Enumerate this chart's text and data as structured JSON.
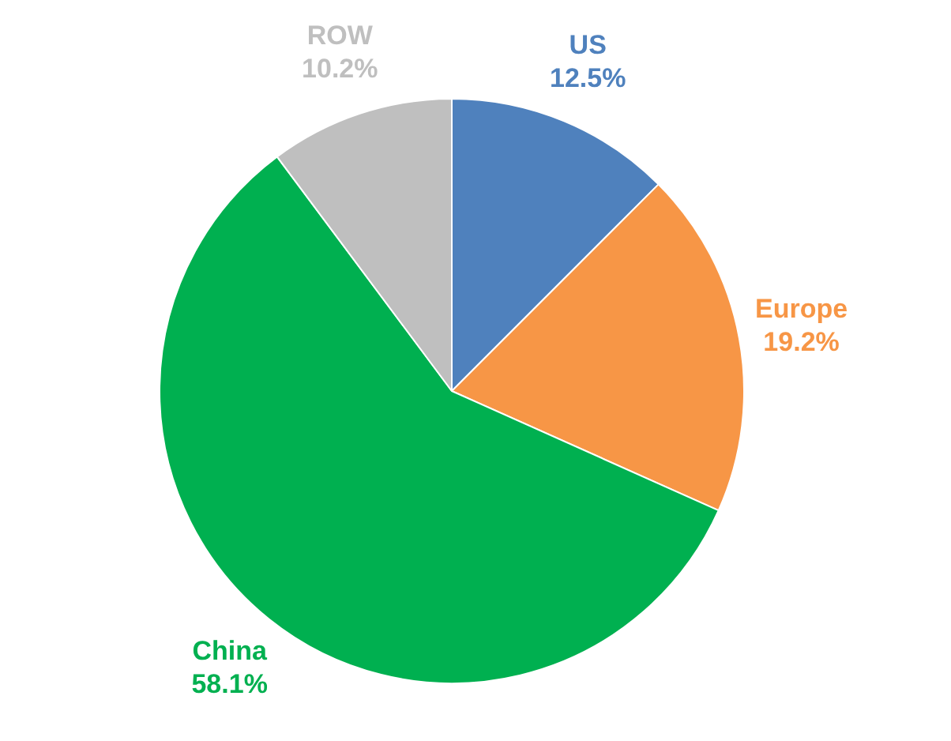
{
  "chart_data": {
    "type": "pie",
    "categories": [
      "US",
      "Europe",
      "China",
      "ROW"
    ],
    "values": [
      12.5,
      19.2,
      58.1,
      10.2
    ],
    "colors": [
      "#4f81bd",
      "#f79646",
      "#00b050",
      "#bfbfbf"
    ],
    "value_labels": [
      "12.5%",
      "19.2%",
      "58.1%",
      "10.2%"
    ],
    "legend": false
  }
}
